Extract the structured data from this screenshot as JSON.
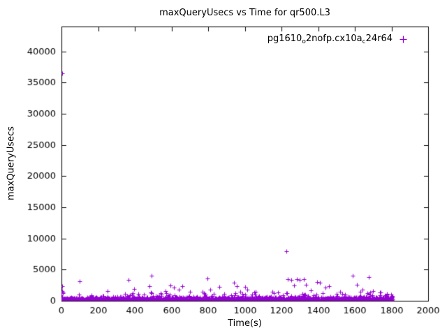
{
  "chart_data": {
    "type": "scatter",
    "title": "maxQueryUsecs vs Time for qr500.L3",
    "xlabel": "Time(s)",
    "ylabel": "maxQueryUsecs",
    "xlim": [
      0,
      2000
    ],
    "ylim": [
      0,
      44000
    ],
    "xticks": [
      0,
      200,
      400,
      600,
      800,
      1000,
      1200,
      1400,
      1600,
      1800,
      2000
    ],
    "yticks": [
      0,
      5000,
      10000,
      15000,
      20000,
      25000,
      30000,
      35000,
      40000
    ],
    "grid": false,
    "legend_position": "top-right-inside",
    "frame_color": "#000000",
    "series": [
      {
        "name": "pg1610_o2nofp.cx10a_c24r64",
        "label_parts": [
          {
            "t": "pg1610"
          },
          {
            "sub": "o"
          },
          {
            "t": "2nofp.cx10a"
          },
          {
            "sub": "c"
          },
          {
            "t": "24r64"
          }
        ],
        "marker": "plus",
        "color": "#9400d3",
        "band": {
          "count": 2400,
          "seed": 11,
          "x_min": 0,
          "x_max": 1805,
          "y_base": 40,
          "y_sigma": 250,
          "spike_prob": 0.05,
          "spike_extra_max": 1100,
          "y_cap": 2200
        },
        "outliers": [
          [
            2,
            36500
          ],
          [
            3,
            2300
          ],
          [
            5,
            1600
          ],
          [
            8,
            1200
          ],
          [
            100,
            3100
          ],
          [
            365,
            3350
          ],
          [
            395,
            1900
          ],
          [
            480,
            2400
          ],
          [
            490,
            4000
          ],
          [
            595,
            2500
          ],
          [
            615,
            2100
          ],
          [
            640,
            1750
          ],
          [
            660,
            2300
          ],
          [
            700,
            1500
          ],
          [
            795,
            3600
          ],
          [
            810,
            1800
          ],
          [
            860,
            2200
          ],
          [
            940,
            2950
          ],
          [
            955,
            2300
          ],
          [
            975,
            1500
          ],
          [
            1000,
            2200
          ],
          [
            1015,
            1750
          ],
          [
            1060,
            1500
          ],
          [
            1150,
            1400
          ],
          [
            1225,
            8000
          ],
          [
            1235,
            3500
          ],
          [
            1255,
            3400
          ],
          [
            1270,
            2500
          ],
          [
            1285,
            3500
          ],
          [
            1300,
            3350
          ],
          [
            1320,
            3500
          ],
          [
            1335,
            2600
          ],
          [
            1360,
            1700
          ],
          [
            1395,
            3000
          ],
          [
            1410,
            2900
          ],
          [
            1440,
            2100
          ],
          [
            1460,
            2400
          ],
          [
            1520,
            1500
          ],
          [
            1590,
            4000
          ],
          [
            1610,
            2600
          ],
          [
            1640,
            1800
          ],
          [
            1675,
            3800
          ],
          [
            1700,
            1600
          ],
          [
            1740,
            1300
          ],
          [
            1775,
            1100
          ]
        ]
      }
    ]
  }
}
